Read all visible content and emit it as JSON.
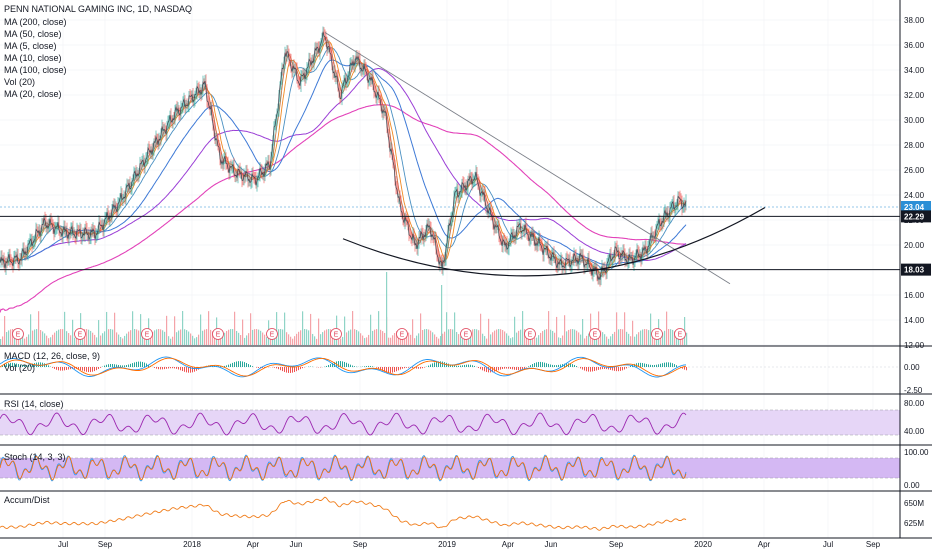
{
  "chart_data": {
    "type": "line",
    "title": "PENN NATIONAL GAMING INC, 1D, NASDAQ",
    "legend": [
      "MA (200, close)",
      "MA (50, close)",
      "MA (5, close)",
      "MA (10, close)",
      "MA (100, close)",
      "Vol (20)",
      "MA (20, close)"
    ],
    "ylim": [
      12,
      39
    ],
    "price_ticks": [
      "38.00",
      "36.00",
      "34.00",
      "32.00",
      "30.00",
      "28.00",
      "26.00",
      "24.00",
      "22.00",
      "20.00",
      "18.00",
      "16.00",
      "14.00",
      "12.00"
    ],
    "price_tick_values": [
      38,
      36,
      34,
      32,
      30,
      28,
      26,
      24,
      22,
      20,
      18,
      16,
      14,
      12
    ],
    "x_ticks": [
      "Jul",
      "Sep",
      "2018",
      "Apr",
      "Jun",
      "Sep",
      "2019",
      "Apr",
      "Jun",
      "Sep",
      "2020",
      "Apr",
      "Jul",
      "Sep"
    ],
    "last_price_label": "23.04",
    "last_price": 23.04,
    "level_labels": [
      "22.29",
      "18.03"
    ],
    "level_values": [
      22.29,
      18.03
    ],
    "events": [
      "E",
      "E",
      "E",
      "E",
      "E",
      "E",
      "E",
      "E",
      "E",
      "E",
      "E",
      "E"
    ],
    "close_approx": [
      {
        "t": 0,
        "v": 18.6
      },
      {
        "t": 20,
        "v": 18.9
      },
      {
        "t": 45,
        "v": 21.8
      },
      {
        "t": 65,
        "v": 21.0
      },
      {
        "t": 95,
        "v": 20.9
      },
      {
        "t": 120,
        "v": 23.5
      },
      {
        "t": 150,
        "v": 27.5
      },
      {
        "t": 175,
        "v": 30.5
      },
      {
        "t": 205,
        "v": 32.8
      },
      {
        "t": 220,
        "v": 27.0
      },
      {
        "t": 235,
        "v": 25.8
      },
      {
        "t": 255,
        "v": 25.2
      },
      {
        "t": 270,
        "v": 26.5
      },
      {
        "t": 285,
        "v": 35.5
      },
      {
        "t": 300,
        "v": 33.0
      },
      {
        "t": 325,
        "v": 36.8
      },
      {
        "t": 340,
        "v": 32.0
      },
      {
        "t": 355,
        "v": 35.0
      },
      {
        "t": 370,
        "v": 33.3
      },
      {
        "t": 385,
        "v": 30.5
      },
      {
        "t": 400,
        "v": 23.0
      },
      {
        "t": 415,
        "v": 20.0
      },
      {
        "t": 430,
        "v": 21.5
      },
      {
        "t": 442,
        "v": 18.0
      },
      {
        "t": 455,
        "v": 24.0
      },
      {
        "t": 475,
        "v": 25.5
      },
      {
        "t": 490,
        "v": 22.5
      },
      {
        "t": 505,
        "v": 19.8
      },
      {
        "t": 520,
        "v": 21.5
      },
      {
        "t": 540,
        "v": 20.0
      },
      {
        "t": 560,
        "v": 18.4
      },
      {
        "t": 580,
        "v": 19.0
      },
      {
        "t": 600,
        "v": 17.5
      },
      {
        "t": 615,
        "v": 19.5
      },
      {
        "t": 630,
        "v": 18.8
      },
      {
        "t": 645,
        "v": 19.5
      },
      {
        "t": 660,
        "v": 21.8
      },
      {
        "t": 672,
        "v": 23.0
      },
      {
        "t": 680,
        "v": 23.6
      },
      {
        "t": 686,
        "v": 23.04
      }
    ],
    "indicators": [
      {
        "name": "MACD (12, 26, close, 9)",
        "sub": "Vol (20)",
        "ticks": [
          "0.00",
          "-2.50"
        ]
      },
      {
        "name": "RSI (14, close)",
        "ticks": [
          "80.00",
          "40.00"
        ]
      },
      {
        "name": "Stoch (14, 3, 3)",
        "ticks": [
          "100.00",
          "0.00"
        ]
      },
      {
        "name": "Accum/Dist",
        "ticks": [
          "650M",
          "625M"
        ]
      }
    ]
  },
  "colors": {
    "price_line": "#3a3f4a",
    "ma200": "#e242b9",
    "ma100": "#9b3fd6",
    "ma50": "#3f7ad6",
    "ma20": "#4a90c2",
    "ma10": "#f08a24",
    "ma5": "#c46a3a",
    "last_price_bg": "#2b8fd6",
    "level_bg": "#131722",
    "rsi_band": "#e6d6f7",
    "stoch_band": "#d4b8f3",
    "accum": "#f07d1b"
  }
}
